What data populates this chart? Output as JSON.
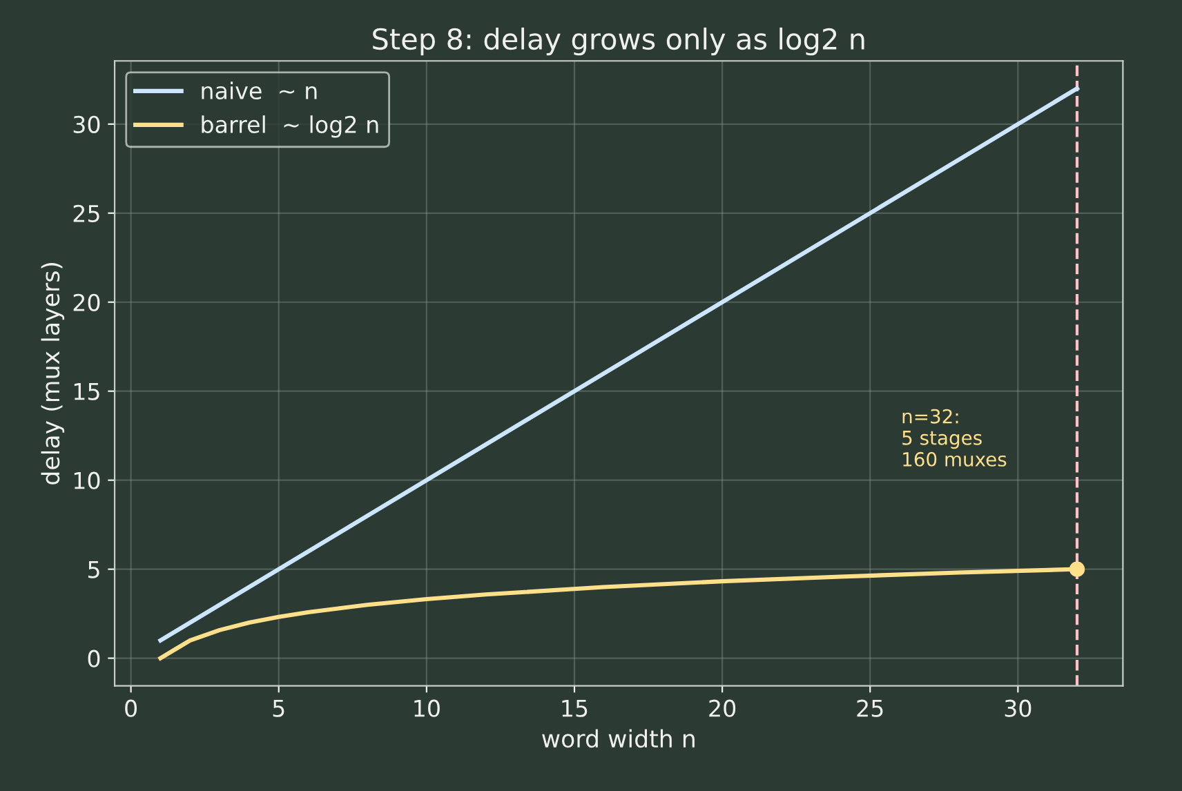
{
  "chart_data": {
    "type": "line",
    "title": "Step 8: delay grows only as log2 n",
    "xlabel": "word width n",
    "ylabel": "delay (mux layers)",
    "series": [
      {
        "name": "naive  ~ n",
        "color": "#cce6ff",
        "x": [
          1,
          32
        ],
        "values": [
          1,
          32
        ]
      },
      {
        "name": "barrel  ~ log2 n",
        "color": "#ffe08a",
        "x": [
          1,
          2,
          3,
          4,
          5,
          6,
          8,
          10,
          12,
          16,
          20,
          24,
          28,
          32
        ],
        "values": [
          0,
          1,
          1.58,
          2,
          2.32,
          2.58,
          3,
          3.32,
          3.58,
          4,
          4.32,
          4.58,
          4.81,
          5
        ]
      },
      {
        "type": "scatter",
        "color": "#ffe08a",
        "x": [
          32
        ],
        "values": [
          5
        ],
        "marker": "circle"
      }
    ],
    "ref_lines": [
      {
        "axis": "x",
        "value": 32,
        "color": "#ffc0cb",
        "line_style": "dashed"
      }
    ],
    "annotations": [
      "n=32:\n5 stages\n160 muxes"
    ],
    "xlim": [
      -0.55,
      33.55
    ],
    "ylim": [
      -1.55,
      33.55
    ],
    "xticks": [
      0,
      5,
      10,
      15,
      20,
      25,
      30
    ],
    "yticks": [
      0,
      5,
      10,
      15,
      20,
      25,
      30
    ],
    "grid": true,
    "legend": "top left",
    "line_style": "solid"
  }
}
